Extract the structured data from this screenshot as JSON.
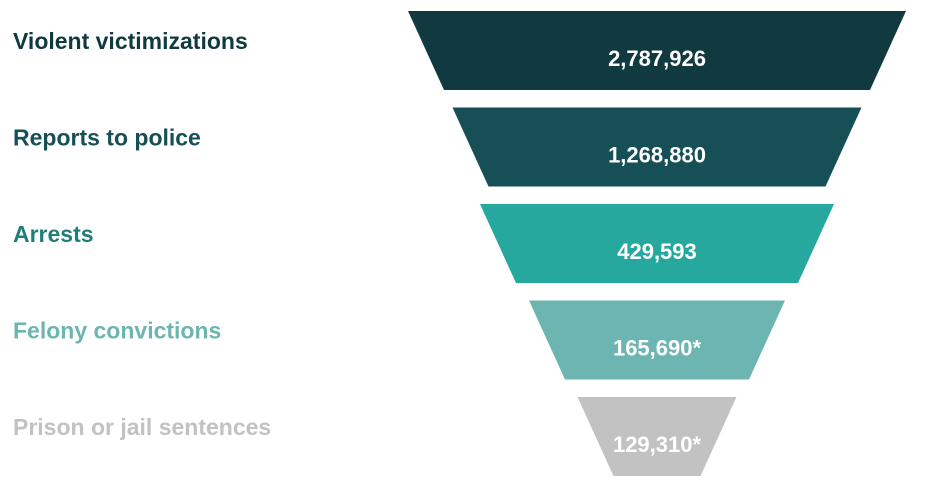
{
  "chart_data": {
    "type": "funnel",
    "title": "",
    "stages": [
      {
        "label": "Violent victimizations",
        "value": 2787926,
        "display": "2,787,926",
        "color": "#103a40"
      },
      {
        "label": "Reports to police",
        "value": 1268880,
        "display": "1,268,880",
        "color": "#174f57"
      },
      {
        "label": "Arrests",
        "value": 429593,
        "display": "429,593",
        "color": "#26a89e"
      },
      {
        "label": "Felony convictions",
        "value": 165690,
        "display": "165,690*",
        "color": "#6db5b0"
      },
      {
        "label": "Prison or jail sentences",
        "value": 129310,
        "display": "129,310*",
        "color": "#c2c2c2"
      }
    ]
  }
}
